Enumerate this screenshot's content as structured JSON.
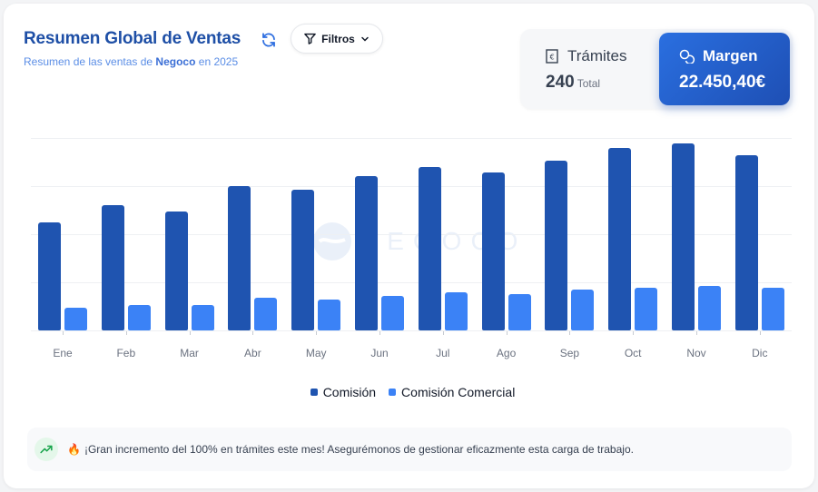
{
  "header": {
    "title": "Resumen Global de Ventas",
    "subtitle_prefix": "Resumen de las ventas de ",
    "subtitle_company": "Negoco",
    "subtitle_suffix": " en 2025",
    "filter_label": "Filtros"
  },
  "stats": {
    "tramites": {
      "label": "Trámites",
      "value": "240",
      "unit": "Total",
      "icon": "euro-document-icon"
    },
    "margen": {
      "label": "Margen",
      "value": "22.450,40€",
      "icon": "coins-icon"
    }
  },
  "watermark": "NEGOCO",
  "chart_data": {
    "type": "bar",
    "title": "",
    "xlabel": "",
    "ylabel": "",
    "ylim": [
      0,
      100
    ],
    "grid": true,
    "y_axis_labels_visible": false,
    "legend_position": "bottom",
    "categories": [
      "Ene",
      "Feb",
      "Mar",
      "Abr",
      "May",
      "Jun",
      "Jul",
      "Ago",
      "Sep",
      "Oct",
      "Nov",
      "Dic"
    ],
    "series": [
      {
        "name": "Comisión",
        "color": "#1f54b0",
        "values": [
          56,
          65,
          62,
          75,
          73,
          80,
          85,
          82,
          88,
          95,
          97,
          91
        ]
      },
      {
        "name": "Comisión Comercial",
        "color": "#3b82f6",
        "values": [
          12,
          13,
          13,
          17,
          16,
          18,
          20,
          19,
          21,
          22,
          23,
          22
        ]
      }
    ]
  },
  "legend": [
    {
      "label": "Comisión",
      "color": "#1f54b0"
    },
    {
      "label": "Comisión Comercial",
      "color": "#3b82f6"
    }
  ],
  "alert": {
    "icon": "trending-up-icon",
    "emoji": "🔥",
    "text": "¡Gran incremento del 100% en trámites este mes! Asegurémonos de gestionar eficazmente esta carga de trabajo."
  }
}
